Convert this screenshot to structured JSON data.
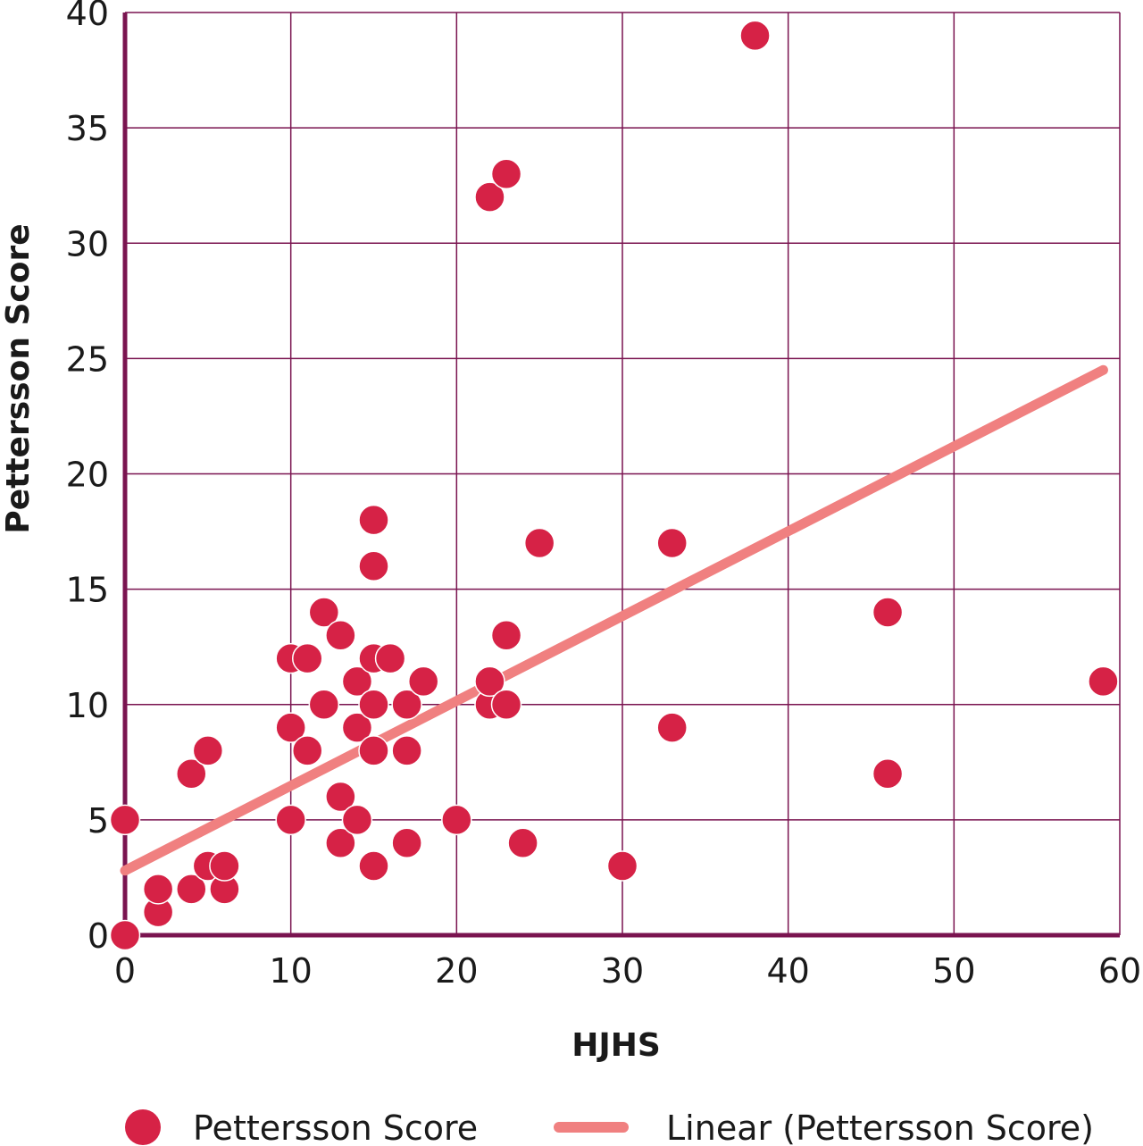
{
  "chart_data": {
    "type": "scatter",
    "title": "",
    "xlabel": "HJHS",
    "ylabel": "Pettersson Score",
    "xlim": [
      0,
      60
    ],
    "ylim": [
      0,
      40
    ],
    "xticks": [
      0,
      10,
      20,
      30,
      40,
      50,
      60
    ],
    "yticks": [
      0,
      5,
      10,
      15,
      20,
      25,
      30,
      35,
      40
    ],
    "grid": true,
    "legend_position": "bottom",
    "series": [
      {
        "name": "Pettersson Score",
        "kind": "scatter",
        "color": "#d62246",
        "points": [
          [
            0,
            0
          ],
          [
            0,
            5
          ],
          [
            2,
            1
          ],
          [
            2,
            2
          ],
          [
            4,
            2
          ],
          [
            4,
            7
          ],
          [
            5,
            3
          ],
          [
            5,
            8
          ],
          [
            6,
            2
          ],
          [
            6,
            3
          ],
          [
            10,
            5
          ],
          [
            10,
            9
          ],
          [
            10,
            12
          ],
          [
            11,
            8
          ],
          [
            11,
            12
          ],
          [
            12,
            10
          ],
          [
            12,
            14
          ],
          [
            13,
            4
          ],
          [
            13,
            6
          ],
          [
            13,
            13
          ],
          [
            14,
            5
          ],
          [
            14,
            9
          ],
          [
            14,
            11
          ],
          [
            15,
            3
          ],
          [
            15,
            8
          ],
          [
            15,
            10
          ],
          [
            15,
            12
          ],
          [
            15,
            16
          ],
          [
            15,
            18
          ],
          [
            16,
            12
          ],
          [
            17,
            4
          ],
          [
            17,
            8
          ],
          [
            17,
            10
          ],
          [
            18,
            11
          ],
          [
            20,
            5
          ],
          [
            22,
            10
          ],
          [
            22,
            11
          ],
          [
            22,
            32
          ],
          [
            23,
            10
          ],
          [
            23,
            13
          ],
          [
            23,
            33
          ],
          [
            24,
            4
          ],
          [
            25,
            17
          ],
          [
            30,
            3
          ],
          [
            33,
            9
          ],
          [
            33,
            17
          ],
          [
            38,
            39
          ],
          [
            46,
            7
          ],
          [
            46,
            14
          ],
          [
            59,
            11
          ]
        ]
      },
      {
        "name": "Linear (Pettersson Score)",
        "kind": "trendline",
        "color": "#f08080",
        "start": [
          0,
          2.8
        ],
        "end": [
          59,
          24.5
        ]
      }
    ]
  },
  "colors": {
    "axis": "#7a1450",
    "grid": "#7a1450",
    "marker": "#d62246",
    "trend": "#f08080"
  },
  "legend": {
    "items": [
      {
        "label": "Pettersson Score",
        "symbol": "circle"
      },
      {
        "label": "Linear (Pettersson Score)",
        "symbol": "line"
      }
    ]
  }
}
